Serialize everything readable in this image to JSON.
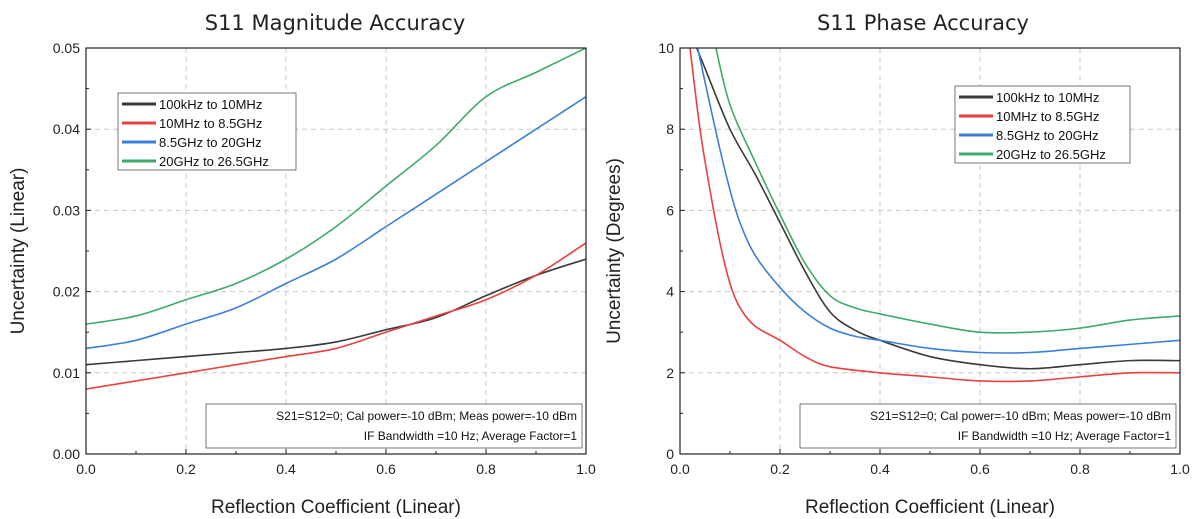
{
  "chart_data": [
    {
      "type": "line",
      "title": "S11 Magnitude Accuracy",
      "xlabel": "Reflection Coefficient (Linear)",
      "ylabel": "Uncertainty (Linear)",
      "xlim": [
        0,
        1.0
      ],
      "ylim": [
        0,
        0.05
      ],
      "xticks": [
        "0.0",
        "0.2",
        "0.4",
        "0.6",
        "0.8",
        "1.0"
      ],
      "yticks": [
        "0.00",
        "0.01",
        "0.02",
        "0.03",
        "0.04",
        "0.05"
      ],
      "grid": true,
      "legend_position": "top-left",
      "annotation": [
        "S21=S12=0; Cal power=-10 dBm; Meas power=-10 dBm",
        "IF Bandwidth =10 Hz; Average Factor=1"
      ],
      "series": [
        {
          "name": "100kHz to 10MHz",
          "color": "#3a3a3a",
          "x": [
            0,
            0.1,
            0.2,
            0.3,
            0.4,
            0.5,
            0.6,
            0.7,
            0.8,
            0.9,
            1.0
          ],
          "y": [
            0.011,
            0.0115,
            0.012,
            0.0125,
            0.013,
            0.0138,
            0.0153,
            0.0168,
            0.0195,
            0.022,
            0.024
          ]
        },
        {
          "name": "10MHz to 8.5GHz",
          "color": "#e8413f",
          "x": [
            0,
            0.1,
            0.2,
            0.3,
            0.4,
            0.5,
            0.6,
            0.7,
            0.8,
            0.9,
            1.0
          ],
          "y": [
            0.008,
            0.009,
            0.01,
            0.011,
            0.012,
            0.013,
            0.015,
            0.017,
            0.019,
            0.022,
            0.026
          ]
        },
        {
          "name": "8.5GHz to 20GHz",
          "color": "#3b7fd9",
          "x": [
            0,
            0.1,
            0.2,
            0.3,
            0.4,
            0.5,
            0.6,
            0.7,
            0.8,
            0.9,
            1.0
          ],
          "y": [
            0.013,
            0.014,
            0.016,
            0.018,
            0.021,
            0.024,
            0.028,
            0.032,
            0.036,
            0.04,
            0.044
          ]
        },
        {
          "name": "20GHz to 26.5GHz",
          "color": "#3daa6a",
          "x": [
            0,
            0.1,
            0.2,
            0.3,
            0.4,
            0.5,
            0.6,
            0.7,
            0.8,
            0.9,
            1.0
          ],
          "y": [
            0.016,
            0.017,
            0.019,
            0.021,
            0.024,
            0.028,
            0.033,
            0.038,
            0.044,
            0.047,
            0.05
          ]
        }
      ]
    },
    {
      "type": "line",
      "title": "S11 Phase Accuracy",
      "xlabel": "Reflection Coefficient (Linear)",
      "ylabel": "Uncertainty (Degrees)",
      "xlim": [
        0,
        1.0
      ],
      "ylim": [
        0,
        10
      ],
      "xticks": [
        "0.0",
        "0.2",
        "0.4",
        "0.6",
        "0.8",
        "1.0"
      ],
      "yticks": [
        "0",
        "2",
        "4",
        "6",
        "8",
        "10"
      ],
      "grid": true,
      "legend_position": "top-right",
      "annotation": [
        "S21=S12=0; Cal power=-10 dBm; Meas power=-10 dBm",
        "IF Bandwidth =10 Hz; Average Factor=1"
      ],
      "series": [
        {
          "name": "100kHz to 10MHz",
          "color": "#3a3a3a",
          "x": [
            0.02,
            0.05,
            0.1,
            0.15,
            0.2,
            0.25,
            0.3,
            0.35,
            0.4,
            0.5,
            0.6,
            0.7,
            0.8,
            0.9,
            1.0
          ],
          "y": [
            10.4,
            9.5,
            8.0,
            6.9,
            5.7,
            4.5,
            3.5,
            3.05,
            2.8,
            2.4,
            2.2,
            2.1,
            2.2,
            2.3,
            2.3
          ]
        },
        {
          "name": "10MHz to 8.5GHz",
          "color": "#e8413f",
          "x": [
            0.02,
            0.04,
            0.06,
            0.08,
            0.1,
            0.12,
            0.15,
            0.2,
            0.25,
            0.3,
            0.4,
            0.5,
            0.6,
            0.7,
            0.8,
            0.9,
            1.0
          ],
          "y": [
            10.0,
            8.0,
            6.5,
            5.2,
            4.2,
            3.6,
            3.15,
            2.8,
            2.4,
            2.15,
            2.0,
            1.9,
            1.8,
            1.8,
            1.9,
            2.0,
            2.0
          ]
        },
        {
          "name": "8.5GHz to 20GHz",
          "color": "#3b7fd9",
          "x": [
            0.03,
            0.06,
            0.08,
            0.1,
            0.12,
            0.15,
            0.2,
            0.25,
            0.3,
            0.35,
            0.4,
            0.5,
            0.6,
            0.7,
            0.8,
            0.9,
            1.0
          ],
          "y": [
            10.3,
            8.6,
            7.5,
            6.5,
            5.7,
            4.9,
            4.1,
            3.5,
            3.1,
            2.9,
            2.8,
            2.6,
            2.5,
            2.5,
            2.6,
            2.7,
            2.8
          ]
        },
        {
          "name": "20GHz to 26.5GHz",
          "color": "#3daa6a",
          "x": [
            0.07,
            0.1,
            0.15,
            0.2,
            0.25,
            0.3,
            0.35,
            0.4,
            0.5,
            0.6,
            0.7,
            0.8,
            0.9,
            1.0
          ],
          "y": [
            10.1,
            8.6,
            7.2,
            5.9,
            4.7,
            3.9,
            3.6,
            3.45,
            3.2,
            3.0,
            3.0,
            3.1,
            3.3,
            3.4
          ]
        }
      ]
    }
  ]
}
